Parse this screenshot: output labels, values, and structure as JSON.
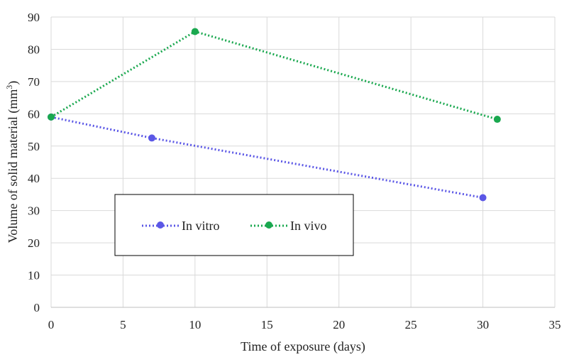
{
  "chart_data": {
    "type": "line",
    "title": "",
    "xlabel": "Time of exposure (days)",
    "ylabel_main": "Volume of solid material (mm",
    "ylabel_sup": "3",
    "ylabel_end": ")",
    "xlim": [
      0,
      35
    ],
    "ylim": [
      0,
      90
    ],
    "xticks": [
      0,
      5,
      10,
      15,
      20,
      25,
      30,
      35
    ],
    "yticks": [
      0,
      10,
      20,
      30,
      40,
      50,
      60,
      70,
      80,
      90
    ],
    "grid": true,
    "legend_position": "lower-left inside",
    "series": [
      {
        "name": "In vitro",
        "color": "#5b57e6",
        "line_style": "dotted",
        "points": [
          {
            "x": 0,
            "y": 59
          },
          {
            "x": 7,
            "y": 52.5
          },
          {
            "x": 30,
            "y": 34
          }
        ]
      },
      {
        "name": "In vivo",
        "color": "#1aa84f",
        "line_style": "dotted",
        "points": [
          {
            "x": 0,
            "y": 59
          },
          {
            "x": 10,
            "y": 85.5
          },
          {
            "x": 31,
            "y": 58.3
          }
        ]
      }
    ]
  }
}
